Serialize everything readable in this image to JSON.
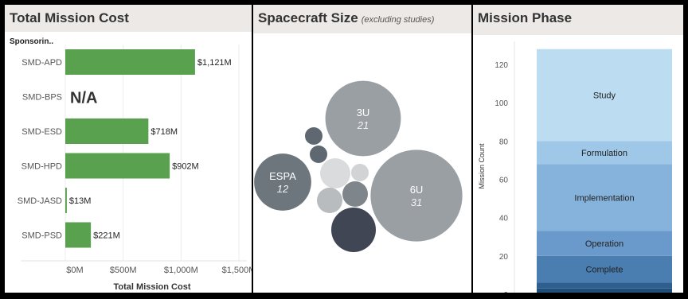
{
  "panels": {
    "cost": {
      "title": "Total Mission Cost"
    },
    "size": {
      "title": "Spacecraft Size",
      "subtitle": "(excluding studies)"
    },
    "phase": {
      "title": "Mission Phase"
    }
  },
  "chart_data": [
    {
      "type": "bar",
      "orientation": "horizontal",
      "title": "Total Mission Cost",
      "row_header": "Sponsorin..",
      "xlabel": "Total Mission Cost",
      "categories": [
        "SMD-APD",
        "SMD-BPS",
        "SMD-ESD",
        "SMD-HPD",
        "SMD-JASD",
        "SMD-PSD"
      ],
      "values": [
        1121,
        null,
        718,
        902,
        13,
        221
      ],
      "value_labels": [
        "$1,121M",
        "N/A",
        "$718M",
        "$902M",
        "$13M",
        "$221M"
      ],
      "x_ticks": [
        0,
        500,
        1000,
        1500
      ],
      "x_tick_labels": [
        "$0M",
        "$500M",
        "$1,000M",
        "$1,500M"
      ],
      "xlim": [
        0,
        1500
      ],
      "color": "#59a14f"
    },
    {
      "type": "bubble",
      "title": "Spacecraft Size",
      "subtitle": "(excluding studies)",
      "labeled_bubbles": [
        {
          "label": "3U",
          "value": 21,
          "color": "#9a9fa3"
        },
        {
          "label": "ESPA",
          "value": 12,
          "color": "#6d767c"
        },
        {
          "label": "6U",
          "value": 31,
          "color": "#9a9fa3"
        }
      ],
      "unlabeled_bubbles": [
        {
          "color": "#5f6870"
        },
        {
          "color": "#5f6870"
        },
        {
          "color": "#d9dbdc"
        },
        {
          "color": "#d1d3d5"
        },
        {
          "color": "#7e868c"
        },
        {
          "color": "#b8bcbf"
        },
        {
          "color": "#414654"
        }
      ]
    },
    {
      "type": "bar",
      "stacked": true,
      "title": "Mission Phase",
      "ylabel": "Mission Count",
      "y_ticks": [
        0,
        20,
        40,
        60,
        80,
        100,
        120
      ],
      "ylim": [
        0,
        125
      ],
      "series": [
        {
          "name": "",
          "value": 3,
          "color": "#1f4e79"
        },
        {
          "name": "",
          "value": 3,
          "color": "#2f5f8f"
        },
        {
          "name": "Complete",
          "value": 14,
          "color": "#4a7db0"
        },
        {
          "name": "Operation",
          "value": 13,
          "color": "#6a9acb"
        },
        {
          "name": "Implementation",
          "value": 35,
          "color": "#86b3dc"
        },
        {
          "name": "Formulation",
          "value": 12,
          "color": "#9fc8e8"
        },
        {
          "name": "Study",
          "value": 48,
          "color": "#bcdcf1"
        }
      ]
    }
  ]
}
